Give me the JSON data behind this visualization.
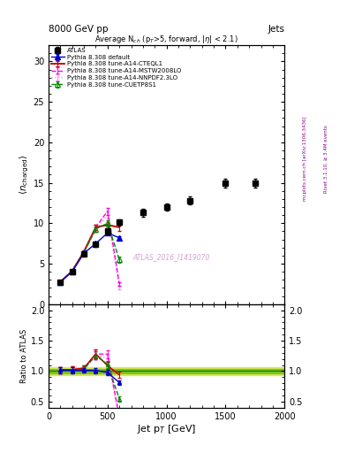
{
  "title_top_left": "8000 GeV pp",
  "title_top_right": "Jets",
  "plot_title": "Average N$_{ch}$ (p$_T$>5, forward, |$\\eta$| < 2.1)",
  "watermark": "ATLAS_2016_I1419070",
  "ylabel_main": "$\\langle n_{charged} \\rangle$",
  "ylabel_ratio": "Ratio to ATLAS",
  "xlabel": "Jet p$_T$ [GeV]",
  "right_label1": "mcplots.cern.ch [arXiv:1306.3436]",
  "right_label2": "Rivet 3.1.10, ≥ 3.4M events",
  "atlas_x": [
    100,
    200,
    300,
    400,
    500,
    600,
    800,
    1000,
    1200,
    1500,
    1750
  ],
  "atlas_y": [
    2.7,
    4.0,
    6.2,
    7.4,
    9.0,
    10.1,
    11.3,
    12.0,
    12.8,
    15.0,
    15.0
  ],
  "atlas_yerr": [
    0.12,
    0.18,
    0.22,
    0.28,
    0.35,
    0.38,
    0.45,
    0.48,
    0.5,
    0.55,
    0.55
  ],
  "pythia_default_x": [
    100,
    200,
    300,
    400,
    500,
    600
  ],
  "pythia_default_y": [
    2.75,
    4.05,
    6.3,
    7.5,
    8.8,
    8.2
  ],
  "pythia_default_yerr": [
    0.05,
    0.07,
    0.1,
    0.15,
    0.2,
    0.2
  ],
  "pythia_cteq_x": [
    100,
    200,
    300,
    400,
    500,
    600
  ],
  "pythia_cteq_y": [
    2.75,
    4.1,
    6.5,
    9.5,
    9.8,
    9.5
  ],
  "pythia_cteq_yerr": [
    0.05,
    0.07,
    0.12,
    0.35,
    0.38,
    0.4
  ],
  "pythia_mstw_x": [
    100,
    200,
    300,
    400,
    500,
    600
  ],
  "pythia_mstw_y": [
    2.75,
    4.1,
    6.5,
    9.5,
    11.5,
    2.5
  ],
  "pythia_mstw_yerr": [
    0.05,
    0.07,
    0.12,
    0.35,
    0.45,
    0.25
  ],
  "pythia_nnpdf_x": [
    100,
    200,
    300,
    400,
    500,
    600
  ],
  "pythia_nnpdf_y": [
    2.75,
    4.05,
    6.4,
    9.2,
    11.0,
    2.0
  ],
  "pythia_nnpdf_yerr": [
    0.05,
    0.07,
    0.11,
    0.32,
    0.42,
    0.22
  ],
  "pythia_cuetp_x": [
    100,
    200,
    300,
    400,
    500,
    600
  ],
  "pythia_cuetp_y": [
    2.75,
    4.05,
    6.4,
    9.3,
    10.0,
    5.5
  ],
  "pythia_cuetp_yerr": [
    0.05,
    0.07,
    0.11,
    0.33,
    0.4,
    0.4
  ],
  "ylim_main": [
    0,
    32
  ],
  "ylim_ratio": [
    0.4,
    2.1
  ],
  "xlim": [
    0,
    2000
  ],
  "yticks_main": [
    0,
    5,
    10,
    15,
    20,
    25,
    30
  ],
  "yticks_ratio": [
    0.5,
    1.0,
    1.5,
    2.0
  ],
  "xticks": [
    0,
    500,
    1000,
    1500,
    2000
  ],
  "color_atlas": "#000000",
  "color_default": "#0000cc",
  "color_cteq": "#cc0000",
  "color_mstw": "#ff00dd",
  "color_nnpdf": "#ff88ff",
  "color_cuetp": "#008800",
  "band_outer_color": "#ccdd00",
  "band_inner_color": "#66bb00",
  "band_outer_alpha": 0.55,
  "band_inner_alpha": 0.7,
  "line1_color": "#008800",
  "bg_color": "#ffffff"
}
